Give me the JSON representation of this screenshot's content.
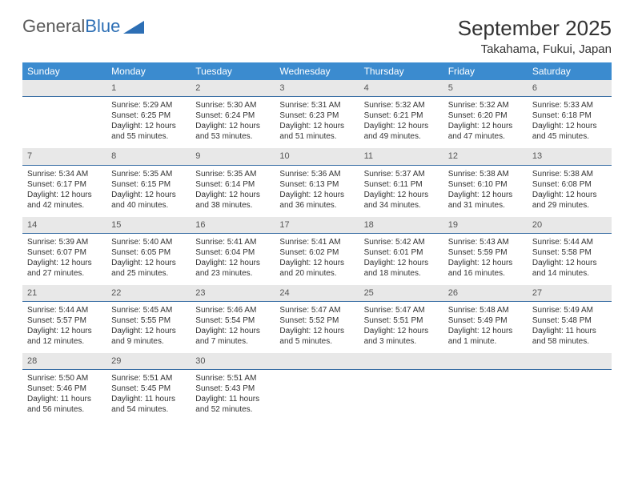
{
  "brand": {
    "part1": "General",
    "part2": "Blue"
  },
  "header": {
    "month_title": "September 2025",
    "location": "Takahama, Fukui, Japan"
  },
  "styling": {
    "header_bg": "#3b8bcf",
    "header_text": "#ffffff",
    "daynum_bg": "#e8e8e8",
    "daynum_border": "#3b6fa5",
    "body_text": "#333333",
    "font_family": "Arial",
    "th_fontsize": 12,
    "cell_fontsize": 10,
    "title_fontsize": 26,
    "location_fontsize": 15
  },
  "weekdays": [
    "Sunday",
    "Monday",
    "Tuesday",
    "Wednesday",
    "Thursday",
    "Friday",
    "Saturday"
  ],
  "weeks": [
    [
      null,
      {
        "n": "1",
        "sr": "Sunrise: 5:29 AM",
        "ss": "Sunset: 6:25 PM",
        "d1": "Daylight: 12 hours",
        "d2": "and 55 minutes."
      },
      {
        "n": "2",
        "sr": "Sunrise: 5:30 AM",
        "ss": "Sunset: 6:24 PM",
        "d1": "Daylight: 12 hours",
        "d2": "and 53 minutes."
      },
      {
        "n": "3",
        "sr": "Sunrise: 5:31 AM",
        "ss": "Sunset: 6:23 PM",
        "d1": "Daylight: 12 hours",
        "d2": "and 51 minutes."
      },
      {
        "n": "4",
        "sr": "Sunrise: 5:32 AM",
        "ss": "Sunset: 6:21 PM",
        "d1": "Daylight: 12 hours",
        "d2": "and 49 minutes."
      },
      {
        "n": "5",
        "sr": "Sunrise: 5:32 AM",
        "ss": "Sunset: 6:20 PM",
        "d1": "Daylight: 12 hours",
        "d2": "and 47 minutes."
      },
      {
        "n": "6",
        "sr": "Sunrise: 5:33 AM",
        "ss": "Sunset: 6:18 PM",
        "d1": "Daylight: 12 hours",
        "d2": "and 45 minutes."
      }
    ],
    [
      {
        "n": "7",
        "sr": "Sunrise: 5:34 AM",
        "ss": "Sunset: 6:17 PM",
        "d1": "Daylight: 12 hours",
        "d2": "and 42 minutes."
      },
      {
        "n": "8",
        "sr": "Sunrise: 5:35 AM",
        "ss": "Sunset: 6:15 PM",
        "d1": "Daylight: 12 hours",
        "d2": "and 40 minutes."
      },
      {
        "n": "9",
        "sr": "Sunrise: 5:35 AM",
        "ss": "Sunset: 6:14 PM",
        "d1": "Daylight: 12 hours",
        "d2": "and 38 minutes."
      },
      {
        "n": "10",
        "sr": "Sunrise: 5:36 AM",
        "ss": "Sunset: 6:13 PM",
        "d1": "Daylight: 12 hours",
        "d2": "and 36 minutes."
      },
      {
        "n": "11",
        "sr": "Sunrise: 5:37 AM",
        "ss": "Sunset: 6:11 PM",
        "d1": "Daylight: 12 hours",
        "d2": "and 34 minutes."
      },
      {
        "n": "12",
        "sr": "Sunrise: 5:38 AM",
        "ss": "Sunset: 6:10 PM",
        "d1": "Daylight: 12 hours",
        "d2": "and 31 minutes."
      },
      {
        "n": "13",
        "sr": "Sunrise: 5:38 AM",
        "ss": "Sunset: 6:08 PM",
        "d1": "Daylight: 12 hours",
        "d2": "and 29 minutes."
      }
    ],
    [
      {
        "n": "14",
        "sr": "Sunrise: 5:39 AM",
        "ss": "Sunset: 6:07 PM",
        "d1": "Daylight: 12 hours",
        "d2": "and 27 minutes."
      },
      {
        "n": "15",
        "sr": "Sunrise: 5:40 AM",
        "ss": "Sunset: 6:05 PM",
        "d1": "Daylight: 12 hours",
        "d2": "and 25 minutes."
      },
      {
        "n": "16",
        "sr": "Sunrise: 5:41 AM",
        "ss": "Sunset: 6:04 PM",
        "d1": "Daylight: 12 hours",
        "d2": "and 23 minutes."
      },
      {
        "n": "17",
        "sr": "Sunrise: 5:41 AM",
        "ss": "Sunset: 6:02 PM",
        "d1": "Daylight: 12 hours",
        "d2": "and 20 minutes."
      },
      {
        "n": "18",
        "sr": "Sunrise: 5:42 AM",
        "ss": "Sunset: 6:01 PM",
        "d1": "Daylight: 12 hours",
        "d2": "and 18 minutes."
      },
      {
        "n": "19",
        "sr": "Sunrise: 5:43 AM",
        "ss": "Sunset: 5:59 PM",
        "d1": "Daylight: 12 hours",
        "d2": "and 16 minutes."
      },
      {
        "n": "20",
        "sr": "Sunrise: 5:44 AM",
        "ss": "Sunset: 5:58 PM",
        "d1": "Daylight: 12 hours",
        "d2": "and 14 minutes."
      }
    ],
    [
      {
        "n": "21",
        "sr": "Sunrise: 5:44 AM",
        "ss": "Sunset: 5:57 PM",
        "d1": "Daylight: 12 hours",
        "d2": "and 12 minutes."
      },
      {
        "n": "22",
        "sr": "Sunrise: 5:45 AM",
        "ss": "Sunset: 5:55 PM",
        "d1": "Daylight: 12 hours",
        "d2": "and 9 minutes."
      },
      {
        "n": "23",
        "sr": "Sunrise: 5:46 AM",
        "ss": "Sunset: 5:54 PM",
        "d1": "Daylight: 12 hours",
        "d2": "and 7 minutes."
      },
      {
        "n": "24",
        "sr": "Sunrise: 5:47 AM",
        "ss": "Sunset: 5:52 PM",
        "d1": "Daylight: 12 hours",
        "d2": "and 5 minutes."
      },
      {
        "n": "25",
        "sr": "Sunrise: 5:47 AM",
        "ss": "Sunset: 5:51 PM",
        "d1": "Daylight: 12 hours",
        "d2": "and 3 minutes."
      },
      {
        "n": "26",
        "sr": "Sunrise: 5:48 AM",
        "ss": "Sunset: 5:49 PM",
        "d1": "Daylight: 12 hours",
        "d2": "and 1 minute."
      },
      {
        "n": "27",
        "sr": "Sunrise: 5:49 AM",
        "ss": "Sunset: 5:48 PM",
        "d1": "Daylight: 11 hours",
        "d2": "and 58 minutes."
      }
    ],
    [
      {
        "n": "28",
        "sr": "Sunrise: 5:50 AM",
        "ss": "Sunset: 5:46 PM",
        "d1": "Daylight: 11 hours",
        "d2": "and 56 minutes."
      },
      {
        "n": "29",
        "sr": "Sunrise: 5:51 AM",
        "ss": "Sunset: 5:45 PM",
        "d1": "Daylight: 11 hours",
        "d2": "and 54 minutes."
      },
      {
        "n": "30",
        "sr": "Sunrise: 5:51 AM",
        "ss": "Sunset: 5:43 PM",
        "d1": "Daylight: 11 hours",
        "d2": "and 52 minutes."
      },
      null,
      null,
      null,
      null
    ]
  ]
}
